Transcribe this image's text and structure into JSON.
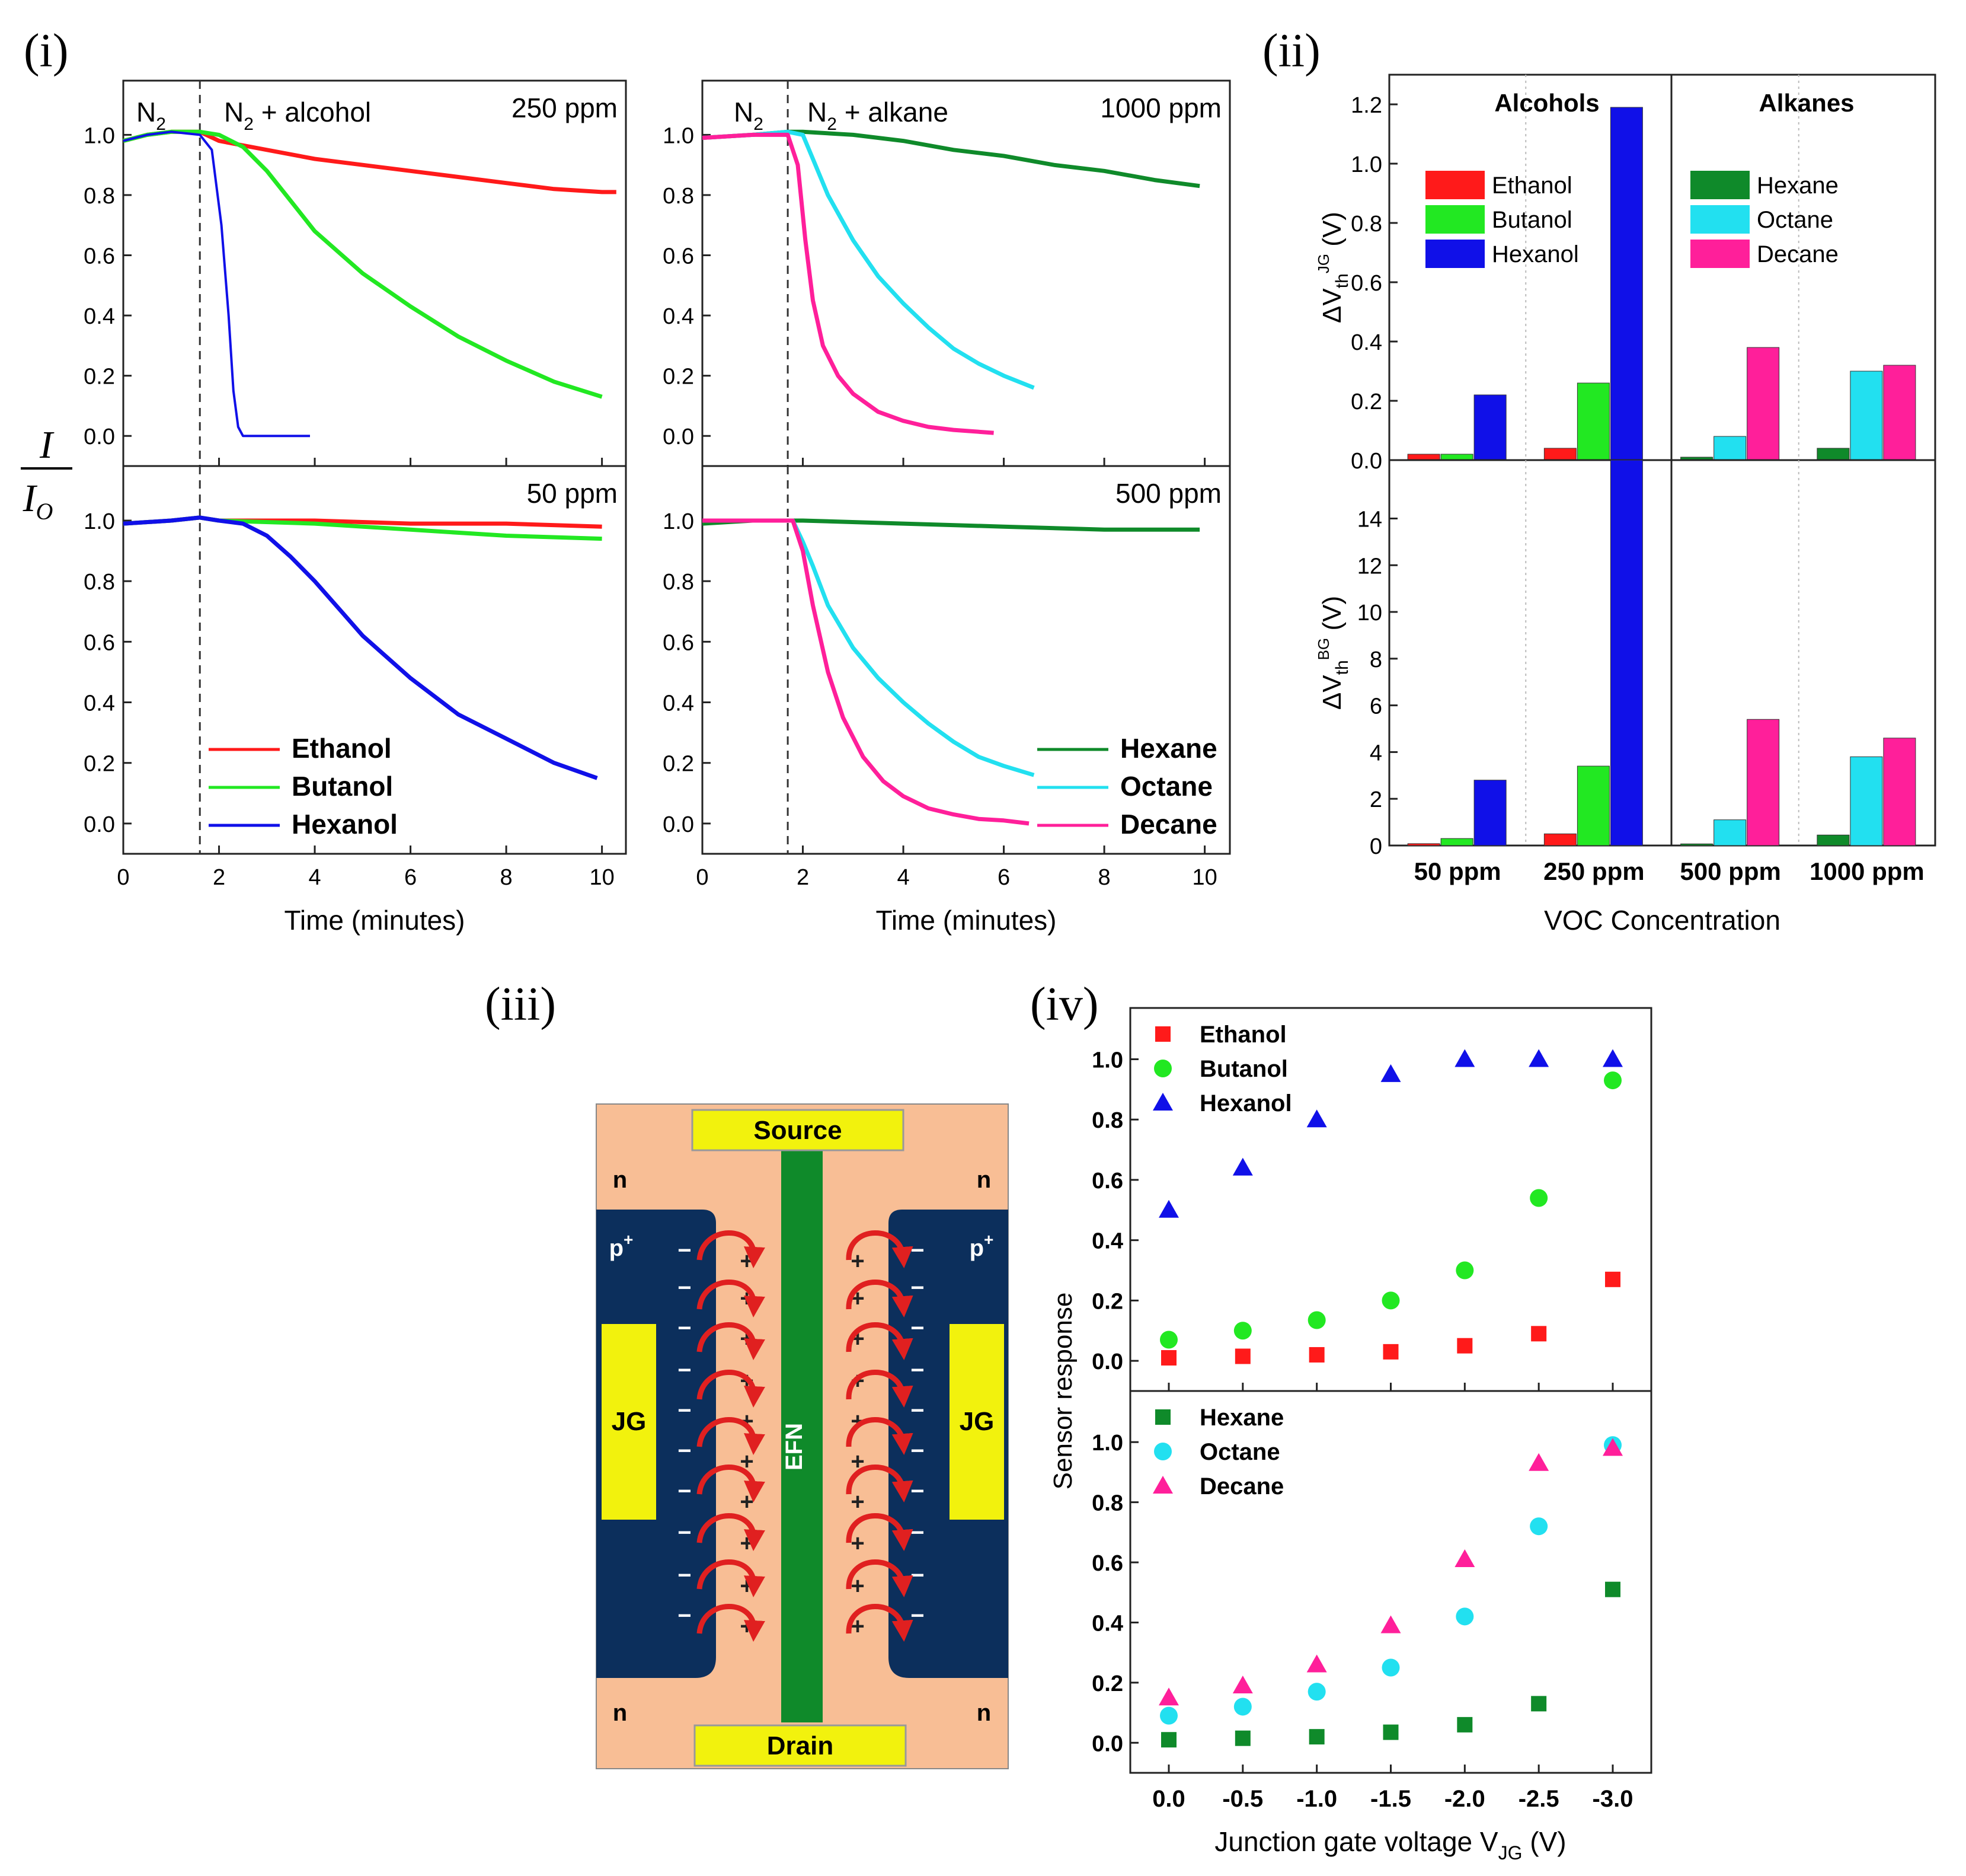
{
  "panel_labels": {
    "i": "(i)",
    "ii": "(ii)",
    "iii": "(iii)",
    "iv": "(iv)"
  },
  "panel_i": {
    "shared_ylabel": {
      "numerator": "I",
      "denominator": "I",
      "denominator_sub": "O"
    },
    "region_n2": "N",
    "region_sub": "2",
    "mixture_alcohol_suffix": " + alcohol",
    "mixture_alkane_suffix": " + alkane"
  },
  "colors": {
    "Ethanol": "#ff1a1a",
    "Butanol": "#22e822",
    "Hexanol": "#1010e8",
    "Hexane": "#0f8a2a",
    "Octane": "#22e0f0",
    "Decane": "#ff1f9a",
    "EFN": "#0f8a2a",
    "Ptype": "#0c2f5c",
    "Ntype": "#f8be95",
    "Electrode": "#f2f20d"
  },
  "chart_data": [
    {
      "id": "i-alcohol-250ppm",
      "type": "line",
      "annotation": "250 ppm",
      "xlabel": "Time (minutes)",
      "ylabel": "I/IO",
      "xlim": [
        0,
        10.5
      ],
      "ylim": [
        -0.1,
        1.18
      ],
      "xticks": [
        "0",
        "2",
        "4",
        "6",
        "8",
        "10"
      ],
      "yticks": [
        "0.0",
        "0.2",
        "0.4",
        "0.6",
        "0.8",
        "1.0"
      ],
      "gas_on_time": 1.6,
      "series": [
        {
          "name": "Ethanol",
          "x": [
            0,
            0.5,
            1,
            1.6,
            2,
            3,
            4,
            5,
            6,
            7,
            8,
            9,
            10,
            10.3
          ],
          "y": [
            0.98,
            1.0,
            1.01,
            1.01,
            0.98,
            0.95,
            0.92,
            0.9,
            0.88,
            0.86,
            0.84,
            0.82,
            0.81,
            0.81
          ]
        },
        {
          "name": "Butanol",
          "x": [
            0,
            0.5,
            1,
            1.6,
            2,
            2.5,
            3,
            3.5,
            4,
            5,
            6,
            7,
            8,
            9,
            10
          ],
          "y": [
            0.98,
            1.0,
            1.01,
            1.01,
            1.0,
            0.96,
            0.88,
            0.78,
            0.68,
            0.54,
            0.43,
            0.33,
            0.25,
            0.18,
            0.13
          ]
        },
        {
          "name": "Hexanol",
          "x": [
            0,
            0.5,
            1,
            1.6,
            1.85,
            2.05,
            2.2,
            2.3,
            2.4,
            2.5,
            3,
            3.9
          ],
          "y": [
            0.98,
            1.0,
            1.01,
            1.0,
            0.95,
            0.7,
            0.4,
            0.15,
            0.03,
            0.0,
            0.0,
            0.0
          ]
        }
      ]
    },
    {
      "id": "i-alkane-1000ppm",
      "type": "line",
      "annotation": "1000 ppm",
      "xlabel": "Time (minutes)",
      "ylabel": "I/IO",
      "xlim": [
        0,
        10.5
      ],
      "ylim": [
        -0.1,
        1.18
      ],
      "xticks": [
        "0",
        "2",
        "4",
        "6",
        "8",
        "10"
      ],
      "yticks": [
        "0.0",
        "0.2",
        "0.4",
        "0.6",
        "0.8",
        "1.0"
      ],
      "gas_on_time": 1.7,
      "series": [
        {
          "name": "Hexane",
          "x": [
            0,
            1,
            1.7,
            2,
            3,
            4,
            5,
            6,
            7,
            8,
            9,
            9.9
          ],
          "y": [
            0.99,
            1.0,
            1.01,
            1.01,
            1.0,
            0.98,
            0.95,
            0.93,
            0.9,
            0.88,
            0.85,
            0.83
          ]
        },
        {
          "name": "Octane",
          "x": [
            0,
            1,
            1.7,
            2,
            2.2,
            2.5,
            3,
            3.5,
            4,
            4.5,
            5,
            5.5,
            6,
            6.6
          ],
          "y": [
            0.99,
            1.0,
            1.01,
            1.0,
            0.92,
            0.8,
            0.65,
            0.53,
            0.44,
            0.36,
            0.29,
            0.24,
            0.2,
            0.16
          ]
        },
        {
          "name": "Decane",
          "x": [
            0,
            1,
            1.7,
            1.9,
            2.05,
            2.2,
            2.4,
            2.7,
            3,
            3.5,
            4,
            4.5,
            5,
            5.8
          ],
          "y": [
            0.99,
            1.0,
            1.0,
            0.9,
            0.65,
            0.45,
            0.3,
            0.2,
            0.14,
            0.08,
            0.05,
            0.03,
            0.02,
            0.01
          ]
        }
      ]
    },
    {
      "id": "i-alcohol-50ppm",
      "type": "line",
      "annotation": "50 ppm",
      "xlabel": "Time (minutes)",
      "ylabel": "I/IO",
      "xlim": [
        0,
        10.5
      ],
      "ylim": [
        -0.1,
        1.18
      ],
      "xticks": [
        "0",
        "2",
        "4",
        "6",
        "8",
        "10"
      ],
      "yticks": [
        "0.0",
        "0.2",
        "0.4",
        "0.6",
        "0.8",
        "1.0"
      ],
      "gas_on_time": 1.6,
      "series": [
        {
          "name": "Ethanol",
          "x": [
            0,
            1,
            1.6,
            2,
            4,
            6,
            8,
            10
          ],
          "y": [
            0.99,
            1.0,
            1.01,
            1.0,
            1.0,
            0.99,
            0.99,
            0.98
          ]
        },
        {
          "name": "Butanol",
          "x": [
            0,
            1,
            1.6,
            2,
            4,
            6,
            8,
            10
          ],
          "y": [
            0.99,
            1.0,
            1.01,
            1.0,
            0.99,
            0.97,
            0.95,
            0.94
          ]
        },
        {
          "name": "Hexanol",
          "x": [
            0,
            1,
            1.6,
            2,
            2.5,
            3,
            3.5,
            4,
            4.5,
            5,
            6,
            7,
            8,
            9,
            9.9
          ],
          "y": [
            0.99,
            1.0,
            1.01,
            1.0,
            0.99,
            0.95,
            0.88,
            0.8,
            0.71,
            0.62,
            0.48,
            0.36,
            0.28,
            0.2,
            0.15
          ]
        }
      ],
      "legend": [
        "Ethanol",
        "Butanol",
        "Hexanol"
      ]
    },
    {
      "id": "i-alkane-500ppm",
      "type": "line",
      "annotation": "500 ppm",
      "xlabel": "Time (minutes)",
      "ylabel": "I/IO",
      "xlim": [
        0,
        10.5
      ],
      "ylim": [
        -0.1,
        1.18
      ],
      "xticks": [
        "0",
        "2",
        "4",
        "6",
        "8",
        "10"
      ],
      "yticks": [
        "0.0",
        "0.2",
        "0.4",
        "0.6",
        "0.8",
        "1.0"
      ],
      "gas_on_time": 1.7,
      "series": [
        {
          "name": "Hexane",
          "x": [
            0,
            1,
            1.7,
            2,
            4,
            6,
            8,
            9.9
          ],
          "y": [
            0.99,
            1.0,
            1.0,
            1.0,
            0.99,
            0.98,
            0.97,
            0.97
          ]
        },
        {
          "name": "Octane",
          "x": [
            0,
            1,
            1.8,
            2,
            2.2,
            2.5,
            3,
            3.5,
            4,
            4.5,
            5,
            5.5,
            6,
            6.6
          ],
          "y": [
            1.0,
            1.0,
            1.0,
            0.93,
            0.85,
            0.72,
            0.58,
            0.48,
            0.4,
            0.33,
            0.27,
            0.22,
            0.19,
            0.16
          ]
        },
        {
          "name": "Decane",
          "x": [
            0,
            1,
            1.8,
            2,
            2.2,
            2.5,
            2.8,
            3.2,
            3.6,
            4,
            4.5,
            5,
            5.5,
            6,
            6.5
          ],
          "y": [
            1.0,
            1.0,
            1.0,
            0.9,
            0.72,
            0.5,
            0.35,
            0.22,
            0.14,
            0.09,
            0.05,
            0.03,
            0.015,
            0.01,
            0.0
          ]
        }
      ],
      "legend": [
        "Hexane",
        "Octane",
        "Decane"
      ]
    },
    {
      "id": "ii-jg",
      "type": "bar",
      "categories": [
        "50 ppm",
        "250 ppm",
        "500 ppm",
        "1000 ppm"
      ],
      "groups": [
        {
          "title": "Alcohols",
          "series": [
            "Ethanol",
            "Butanol",
            "Hexanol"
          ]
        },
        {
          "title": "Alkanes",
          "series": [
            "Hexane",
            "Octane",
            "Decane"
          ]
        }
      ],
      "series": [
        {
          "name": "Ethanol",
          "category_values": {
            "50 ppm": 0.02,
            "250 ppm": 0.04
          }
        },
        {
          "name": "Butanol",
          "category_values": {
            "50 ppm": 0.02,
            "250 ppm": 0.26
          }
        },
        {
          "name": "Hexanol",
          "category_values": {
            "50 ppm": 0.22,
            "250 ppm": 1.19
          }
        },
        {
          "name": "Hexane",
          "category_values": {
            "500 ppm": 0.01,
            "1000 ppm": 0.04
          }
        },
        {
          "name": "Octane",
          "category_values": {
            "500 ppm": 0.08,
            "1000 ppm": 0.3
          }
        },
        {
          "name": "Decane",
          "category_values": {
            "500 ppm": 0.38,
            "1000 ppm": 0.32
          }
        }
      ],
      "ylabel": "ΔVth^JG (V)",
      "ylim": [
        0,
        1.3
      ],
      "yticks": [
        "0.0",
        "0.2",
        "0.4",
        "0.6",
        "0.8",
        "1.0",
        "1.2"
      ],
      "legend": [
        "Ethanol",
        "Butanol",
        "Hexanol",
        "Hexane",
        "Octane",
        "Decane"
      ]
    },
    {
      "id": "ii-bg",
      "type": "bar",
      "categories": [
        "50 ppm",
        "250 ppm",
        "500 ppm",
        "1000 ppm"
      ],
      "series": [
        {
          "name": "Ethanol",
          "category_values": {
            "50 ppm": 0.08,
            "250 ppm": 0.5
          }
        },
        {
          "name": "Butanol",
          "category_values": {
            "50 ppm": 0.3,
            "250 ppm": 3.4
          }
        },
        {
          "name": "Hexanol",
          "category_values": {
            "50 ppm": 2.8,
            "250 ppm": 16.5
          }
        },
        {
          "name": "Hexane",
          "category_values": {
            "500 ppm": 0.07,
            "1000 ppm": 0.45
          }
        },
        {
          "name": "Octane",
          "category_values": {
            "500 ppm": 1.1,
            "1000 ppm": 3.8
          }
        },
        {
          "name": "Decane",
          "category_values": {
            "500 ppm": 5.4,
            "1000 ppm": 4.6
          }
        }
      ],
      "ylabel": "ΔVth^BG (V)",
      "ylim": [
        0,
        16.5
      ],
      "yticks": [
        "0",
        "2",
        "4",
        "6",
        "8",
        "10",
        "12",
        "14"
      ],
      "xlabel": "VOC Concentration",
      "category_labels": [
        "50 ppm",
        "250 ppm",
        "500 ppm",
        "1000 ppm"
      ]
    },
    {
      "id": "iv-alcohols",
      "type": "scatter",
      "x": [
        0,
        -0.5,
        -1.0,
        -1.5,
        -2.0,
        -2.5,
        -3.0
      ],
      "series": [
        {
          "name": "Ethanol",
          "marker": "square",
          "values": [
            0.01,
            0.015,
            0.02,
            0.03,
            0.05,
            0.09,
            0.27
          ]
        },
        {
          "name": "Butanol",
          "marker": "circle",
          "values": [
            0.07,
            0.1,
            0.135,
            0.2,
            0.3,
            0.54,
            0.93
          ]
        },
        {
          "name": "Hexanol",
          "marker": "triangle",
          "values": [
            0.5,
            0.64,
            0.8,
            0.95,
            1.0,
            1.0,
            1.0
          ]
        }
      ],
      "ylim": [
        -0.1,
        1.17
      ],
      "yticks": [
        "0.0",
        "0.2",
        "0.4",
        "0.6",
        "0.8",
        "1.0"
      ],
      "legend": [
        "Ethanol",
        "Butanol",
        "Hexanol"
      ]
    },
    {
      "id": "iv-alkanes",
      "type": "scatter",
      "x": [
        0,
        -0.5,
        -1.0,
        -1.5,
        -2.0,
        -2.5,
        -3.0
      ],
      "series": [
        {
          "name": "Hexane",
          "marker": "square",
          "values": [
            0.01,
            0.015,
            0.02,
            0.035,
            0.06,
            0.13,
            0.51
          ]
        },
        {
          "name": "Octane",
          "marker": "circle",
          "values": [
            0.09,
            0.12,
            0.17,
            0.25,
            0.42,
            0.72,
            0.99
          ]
        },
        {
          "name": "Decane",
          "marker": "triangle",
          "values": [
            0.15,
            0.19,
            0.26,
            0.39,
            0.61,
            0.93,
            0.98
          ]
        }
      ],
      "ylim": [
        -0.1,
        1.17
      ],
      "yticks": [
        "0.0",
        "0.2",
        "0.4",
        "0.6",
        "0.8",
        "1.0"
      ],
      "xticks": [
        "0.0",
        "-0.5",
        "-1.0",
        "-1.5",
        "-2.0",
        "-2.5",
        "-3.0"
      ],
      "legend": [
        "Hexane",
        "Octane",
        "Decane"
      ],
      "ylabel": "Sensor response",
      "xlabel_main": "Junction gate voltage V",
      "xlabel_sub": "JG",
      "xlabel_unit": " (V)"
    }
  ],
  "diagram": {
    "source": "Source",
    "drain": "Drain",
    "efn": "EFN",
    "jg": "JG",
    "n": "n",
    "p": "p",
    "p_sup": "+",
    "minus": "−",
    "plus": "+"
  }
}
